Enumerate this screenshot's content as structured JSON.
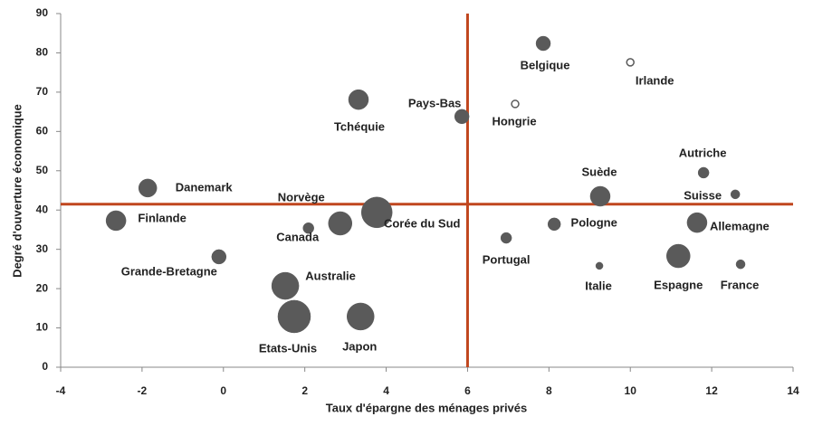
{
  "chart_data": {
    "type": "bubble",
    "x_label": "Taux d'épargne des ménages privés",
    "y_label": "Degré d'ouverture économique",
    "xlim": [
      -4,
      14
    ],
    "xticks": [
      -4,
      -2,
      0,
      2,
      4,
      6,
      8,
      10,
      12,
      14
    ],
    "ylim": [
      0,
      90
    ],
    "yticks": [
      0,
      10,
      20,
      30,
      40,
      50,
      60,
      70,
      80,
      90
    ],
    "color": "#5a5a5a",
    "ref_color": "#c0461e",
    "ref_x": 6,
    "ref_y": 41.5,
    "points": [
      {
        "label": "Belgique",
        "x": 7.86,
        "y": 82.4,
        "size": 64,
        "filled": true
      },
      {
        "label": "Irlande",
        "x": 10.0,
        "y": 77.6,
        "size": 16,
        "filled": false
      },
      {
        "label": "Hongrie",
        "x": 7.17,
        "y": 67,
        "size": 16,
        "filled": false
      },
      {
        "label": "Pays-Bas",
        "x": 5.86,
        "y": 63.8,
        "size": 64,
        "filled": true
      },
      {
        "label": "Tchéquie",
        "x": 3.32,
        "y": 68.1,
        "size": 121,
        "filled": true
      },
      {
        "label": "Danemark",
        "x": -1.86,
        "y": 45.6,
        "size": 100,
        "filled": true
      },
      {
        "label": "Finlande",
        "x": -2.64,
        "y": 37.3,
        "size": 121,
        "filled": true
      },
      {
        "label": "Norvège",
        "x": 2.87,
        "y": 36.6,
        "size": 169,
        "filled": true
      },
      {
        "label": "Canada",
        "x": 2.09,
        "y": 35.4,
        "size": 36,
        "filled": true
      },
      {
        "label": "Corée du Sud",
        "x": 3.77,
        "y": 39.4,
        "size": 289,
        "filled": true
      },
      {
        "label": "Grande-Bretagne",
        "x": -0.11,
        "y": 28.1,
        "size": 64,
        "filled": true
      },
      {
        "label": "Australie",
        "x": 1.52,
        "y": 20.7,
        "size": 225,
        "filled": true
      },
      {
        "label": "Etats-Unis",
        "x": 1.74,
        "y": 12.9,
        "size": 324,
        "filled": true
      },
      {
        "label": "Japon",
        "x": 3.37,
        "y": 12.9,
        "size": 225,
        "filled": true
      },
      {
        "label": "Portugal",
        "x": 6.95,
        "y": 32.9,
        "size": 36,
        "filled": true
      },
      {
        "label": "Pologne",
        "x": 8.13,
        "y": 36.4,
        "size": 49,
        "filled": true
      },
      {
        "label": "Suède",
        "x": 9.26,
        "y": 43.5,
        "size": 121,
        "filled": true
      },
      {
        "label": "Italie",
        "x": 9.24,
        "y": 25.8,
        "size": 16,
        "filled": true
      },
      {
        "label": "Autriche",
        "x": 11.8,
        "y": 49.5,
        "size": 36,
        "filled": true
      },
      {
        "label": "Suisse",
        "x": 12.58,
        "y": 44,
        "size": 25,
        "filled": true
      },
      {
        "label": "Allemagne",
        "x": 11.64,
        "y": 36.8,
        "size": 121,
        "filled": true
      },
      {
        "label": "Espagne",
        "x": 11.18,
        "y": 28.3,
        "size": 169,
        "filled": true
      },
      {
        "label": "France",
        "x": 12.71,
        "y": 26.2,
        "size": 25,
        "filled": true
      }
    ]
  }
}
